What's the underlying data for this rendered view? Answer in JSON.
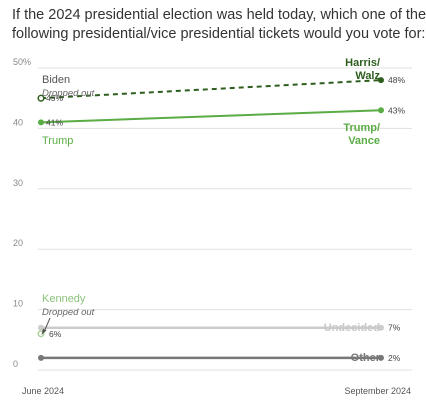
{
  "title_lines": [
    "If the 2024 presidential election was held today, which one of the",
    "following presidential/vice presidential tickets would you vote for:"
  ],
  "chart_data": {
    "type": "line",
    "title": "If the 2024 presidential election was held today, which one of the following presidential/vice presidential tickets would you vote for:",
    "x": [
      "June 2024",
      "September 2024"
    ],
    "ylim": [
      0,
      50
    ],
    "yticks": [
      "0",
      "10",
      "20",
      "30",
      "40",
      "50%"
    ],
    "grid": true,
    "series": [
      {
        "name": "Biden",
        "sub": "Dropped out",
        "values": [
          45,
          null
        ],
        "color": "#2e5e1e",
        "dashed": true,
        "value_labels": [
          "45%",
          ""
        ]
      },
      {
        "name": "Harris/ Walz",
        "values": [
          null,
          48
        ],
        "color": "#2e5e1e",
        "value_labels": [
          "",
          "48%"
        ]
      },
      {
        "name": "Trump",
        "values": [
          41,
          null
        ],
        "color": "#5aac44",
        "value_labels": [
          "41%",
          ""
        ]
      },
      {
        "name": "Trump/ Vance",
        "values": [
          41,
          43
        ],
        "color": "#5aac44",
        "value_labels": [
          "",
          "43%"
        ]
      },
      {
        "name": "Kennedy",
        "sub": "Dropped out",
        "values": [
          6,
          null
        ],
        "color": "#a8d49a",
        "value_labels": [
          "6%",
          ""
        ]
      },
      {
        "name": "Undecided",
        "values": [
          7,
          7
        ],
        "color": "#cccccc",
        "value_labels": [
          "",
          "7%"
        ]
      },
      {
        "name": "Other",
        "values": [
          2,
          2
        ],
        "color": "#777777",
        "value_labels": [
          "",
          "2%"
        ]
      }
    ],
    "colors": {
      "harris_walz": "#2e5e1e",
      "trump": "#5aac44",
      "kennedy": "#a8d49a",
      "undecided": "#cccccc",
      "other": "#777777",
      "grid": "#e0e0e0"
    }
  }
}
